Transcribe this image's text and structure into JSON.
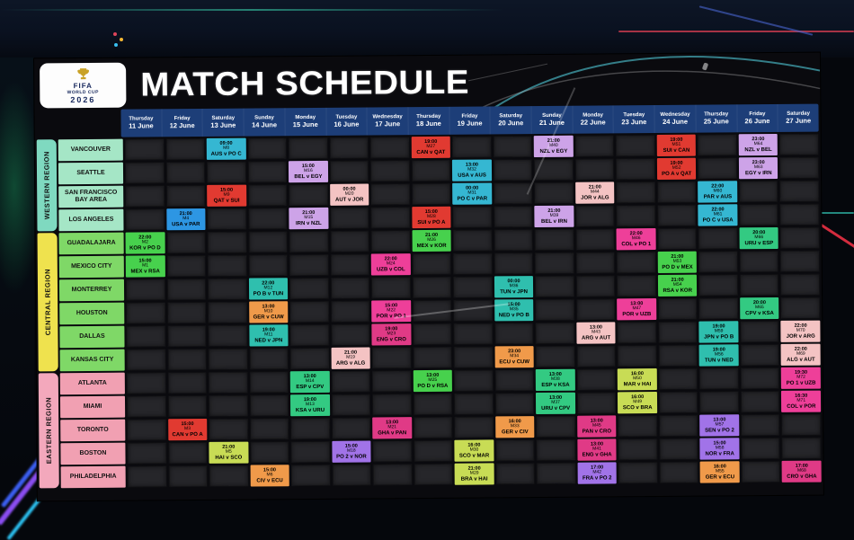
{
  "title": "MATCH SCHEDULE",
  "logo": {
    "line1": "FIFA",
    "line2": "WORLD CUP",
    "line3": "2026",
    "icon": "world-cup-trophy"
  },
  "ui_colors": {
    "column_header_bg": "#1d3e78",
    "cell_bg": "#26262a",
    "board_bg": "#0a0a0e"
  },
  "columns": [
    {
      "day": "Thursday",
      "date": "11 June"
    },
    {
      "day": "Friday",
      "date": "12 June"
    },
    {
      "day": "Saturday",
      "date": "13 June"
    },
    {
      "day": "Sunday",
      "date": "14 June"
    },
    {
      "day": "Monday",
      "date": "15 June"
    },
    {
      "day": "Tuesday",
      "date": "16 June"
    },
    {
      "day": "Wednesday",
      "date": "17 June"
    },
    {
      "day": "Thursday",
      "date": "18 June"
    },
    {
      "day": "Friday",
      "date": "19 June"
    },
    {
      "day": "Saturday",
      "date": "20 June"
    },
    {
      "day": "Sunday",
      "date": "21 June"
    },
    {
      "day": "Monday",
      "date": "22 June"
    },
    {
      "day": "Tuesday",
      "date": "23 June"
    },
    {
      "day": "Wednesday",
      "date": "24 June"
    },
    {
      "day": "Thursday",
      "date": "25 June"
    },
    {
      "day": "Friday",
      "date": "26 June"
    },
    {
      "day": "Saturday",
      "date": "27 June"
    }
  ],
  "regions": [
    {
      "name": "WESTERN REGION",
      "strip_color": "#7fd9c0",
      "city_color": "#a5e6c6",
      "cities": [
        "VANCOUVER",
        "SEATTLE",
        "SAN FRANCISCO BAY AREA",
        "LOS ANGELES"
      ]
    },
    {
      "name": "CENTRAL REGION",
      "strip_color": "#efe24e",
      "city_color": "#7fd867",
      "cities": [
        "GUADALAJARA",
        "MEXICO CITY",
        "MONTERREY",
        "HOUSTON",
        "DALLAS",
        "KANSAS CITY"
      ]
    },
    {
      "name": "EASTERN REGION",
      "strip_color": "#f3a8bc",
      "city_color": "#f1a0b2",
      "cities": [
        "ATLANTA",
        "MIAMI",
        "TORONTO",
        "BOSTON",
        "PHILADELPHIA"
      ]
    }
  ],
  "group_colors": {
    "usa": "#35b7d2",
    "usa_blue": "#2d96e3",
    "can": "#e13a31",
    "bel": "#cda3e8",
    "mex": "#47d14d",
    "esp": "#33ca82",
    "ger": "#f09a4a",
    "ned": "#2fbfae",
    "eng": "#e03a86",
    "por": "#ee3f99",
    "arg": "#f4c3c3",
    "bra": "#c8dc55",
    "fra": "#a173e8"
  },
  "matches": [
    {
      "row": 0,
      "col": 2,
      "time": "09:00",
      "no": "M8",
      "teams": "AUS v PO C",
      "group": "usa"
    },
    {
      "row": 0,
      "col": 7,
      "time": "19:00",
      "no": "M27",
      "teams": "CAN v QAT",
      "group": "can"
    },
    {
      "row": 0,
      "col": 10,
      "time": "21:00",
      "no": "M40",
      "teams": "NZL v EGY",
      "group": "bel"
    },
    {
      "row": 0,
      "col": 13,
      "time": "19:00",
      "no": "M51",
      "teams": "SUI v CAN",
      "group": "can"
    },
    {
      "row": 0,
      "col": 15,
      "time": "23:00",
      "no": "M64",
      "teams": "NZL v BEL",
      "group": "bel"
    },
    {
      "row": 1,
      "col": 4,
      "time": "15:00",
      "no": "M16",
      "teams": "BEL v EGY",
      "group": "bel"
    },
    {
      "row": 1,
      "col": 8,
      "time": "13:00",
      "no": "M32",
      "teams": "USA v AUS",
      "group": "usa"
    },
    {
      "row": 1,
      "col": 13,
      "time": "19:00",
      "no": "M52",
      "teams": "PO A v QAT",
      "group": "can"
    },
    {
      "row": 1,
      "col": 15,
      "time": "23:00",
      "no": "M63",
      "teams": "EGY v IRN",
      "group": "bel"
    },
    {
      "row": 2,
      "col": 2,
      "time": "15:00",
      "no": "M9",
      "teams": "QAT v SUI",
      "group": "can"
    },
    {
      "row": 2,
      "col": 5,
      "time": "00:00",
      "no": "M20",
      "teams": "AUT v JOR",
      "group": "arg"
    },
    {
      "row": 2,
      "col": 8,
      "time": "00:00",
      "no": "M31",
      "teams": "PO C v PAR",
      "group": "usa"
    },
    {
      "row": 2,
      "col": 11,
      "time": "21:00",
      "no": "M44",
      "teams": "JOR v ALG",
      "group": "arg"
    },
    {
      "row": 2,
      "col": 14,
      "time": "22:00",
      "no": "M60",
      "teams": "PAR v AUS",
      "group": "usa"
    },
    {
      "row": 3,
      "col": 1,
      "time": "21:00",
      "no": "M4",
      "teams": "USA v PAR",
      "group": "usa_blue"
    },
    {
      "row": 3,
      "col": 4,
      "time": "21:00",
      "no": "M15",
      "teams": "IRN v NZL",
      "group": "bel"
    },
    {
      "row": 3,
      "col": 7,
      "time": "15:00",
      "no": "M28",
      "teams": "SUI v PO A",
      "group": "can"
    },
    {
      "row": 3,
      "col": 10,
      "time": "21:00",
      "no": "M39",
      "teams": "BEL v IRN",
      "group": "bel"
    },
    {
      "row": 3,
      "col": 14,
      "time": "22:00",
      "no": "M61",
      "teams": "PO C v USA",
      "group": "usa"
    },
    {
      "row": 4,
      "col": 0,
      "time": "22:00",
      "no": "M2",
      "teams": "KOR v PO D",
      "group": "mex"
    },
    {
      "row": 4,
      "col": 7,
      "time": "21:00",
      "no": "M26",
      "teams": "MEX v KOR",
      "group": "mex"
    },
    {
      "row": 4,
      "col": 12,
      "time": "22:00",
      "no": "M46",
      "teams": "COL v PO 1",
      "group": "por"
    },
    {
      "row": 4,
      "col": 15,
      "time": "20:00",
      "no": "M66",
      "teams": "URU v ESP",
      "group": "esp"
    },
    {
      "row": 5,
      "col": 0,
      "time": "15:00",
      "no": "M1",
      "teams": "MEX v RSA",
      "group": "mex"
    },
    {
      "row": 5,
      "col": 6,
      "time": "22:00",
      "no": "M24",
      "teams": "UZB v COL",
      "group": "por"
    },
    {
      "row": 5,
      "col": 13,
      "time": "21:00",
      "no": "M53",
      "teams": "PO D v MEX",
      "group": "mex"
    },
    {
      "row": 6,
      "col": 3,
      "time": "22:00",
      "no": "M12",
      "teams": "PO B v TUN",
      "group": "ned"
    },
    {
      "row": 6,
      "col": 9,
      "time": "00:00",
      "no": "M36",
      "teams": "TUN v JPN",
      "group": "ned"
    },
    {
      "row": 6,
      "col": 13,
      "time": "21:00",
      "no": "M54",
      "teams": "RSA v KOR",
      "group": "mex"
    },
    {
      "row": 7,
      "col": 3,
      "time": "13:00",
      "no": "M10",
      "teams": "GER v CUW",
      "group": "ger"
    },
    {
      "row": 7,
      "col": 6,
      "time": "15:00",
      "no": "M22",
      "teams": "POR v PO 1",
      "group": "por"
    },
    {
      "row": 7,
      "col": 9,
      "time": "15:00",
      "no": "M35",
      "teams": "NED v PO B",
      "group": "ned"
    },
    {
      "row": 7,
      "col": 12,
      "time": "13:00",
      "no": "M47",
      "teams": "POR v UZB",
      "group": "por"
    },
    {
      "row": 7,
      "col": 15,
      "time": "20:00",
      "no": "M65",
      "teams": "CPV v KSA",
      "group": "esp"
    },
    {
      "row": 8,
      "col": 3,
      "time": "19:00",
      "no": "M11",
      "teams": "NED v JPN",
      "group": "ned"
    },
    {
      "row": 8,
      "col": 6,
      "time": "19:00",
      "no": "M23",
      "teams": "ENG v CRO",
      "group": "eng"
    },
    {
      "row": 8,
      "col": 11,
      "time": "13:00",
      "no": "M43",
      "teams": "ARG v AUT",
      "group": "arg"
    },
    {
      "row": 8,
      "col": 14,
      "time": "19:00",
      "no": "M59",
      "teams": "JPN v PO B",
      "group": "ned"
    },
    {
      "row": 8,
      "col": 16,
      "time": "22:00",
      "no": "M70",
      "teams": "JOR v ARG",
      "group": "arg"
    },
    {
      "row": 9,
      "col": 5,
      "time": "21:00",
      "no": "M19",
      "teams": "ARG v ALG",
      "group": "arg"
    },
    {
      "row": 9,
      "col": 9,
      "time": "23:00",
      "no": "M34",
      "teams": "ECU v CUW",
      "group": "ger"
    },
    {
      "row": 9,
      "col": 14,
      "time": "19:00",
      "no": "M56",
      "teams": "TUN v NED",
      "group": "ned"
    },
    {
      "row": 9,
      "col": 16,
      "time": "22:00",
      "no": "M69",
      "teams": "ALG v AUT",
      "group": "arg"
    },
    {
      "row": 10,
      "col": 4,
      "time": "13:00",
      "no": "M14",
      "teams": "ESP v CPV",
      "group": "esp"
    },
    {
      "row": 10,
      "col": 7,
      "time": "13:00",
      "no": "M25",
      "teams": "PO D v RSA",
      "group": "mex"
    },
    {
      "row": 10,
      "col": 10,
      "time": "13:00",
      "no": "M38",
      "teams": "ESP v KSA",
      "group": "esp"
    },
    {
      "row": 10,
      "col": 12,
      "time": "16:00",
      "no": "M50",
      "teams": "MAR v HAI",
      "group": "bra"
    },
    {
      "row": 10,
      "col": 16,
      "time": "19:30",
      "no": "M72",
      "teams": "PO 1 v UZB",
      "group": "por"
    },
    {
      "row": 11,
      "col": 4,
      "time": "19:00",
      "no": "M13",
      "teams": "KSA v URU",
      "group": "esp"
    },
    {
      "row": 11,
      "col": 10,
      "time": "13:00",
      "no": "M37",
      "teams": "URU v CPV",
      "group": "esp"
    },
    {
      "row": 11,
      "col": 12,
      "time": "16:00",
      "no": "M49",
      "teams": "SCO v BRA",
      "group": "bra"
    },
    {
      "row": 11,
      "col": 16,
      "time": "16:30",
      "no": "M71",
      "teams": "COL v POR",
      "group": "por"
    },
    {
      "row": 12,
      "col": 1,
      "time": "15:00",
      "no": "M3",
      "teams": "CAN v PO A",
      "group": "can"
    },
    {
      "row": 12,
      "col": 6,
      "time": "13:00",
      "no": "M21",
      "teams": "GHA v PAN",
      "group": "eng"
    },
    {
      "row": 12,
      "col": 9,
      "time": "16:00",
      "no": "M33",
      "teams": "GER v CIV",
      "group": "ger"
    },
    {
      "row": 12,
      "col": 11,
      "time": "13:00",
      "no": "M45",
      "teams": "PAN v CRO",
      "group": "eng"
    },
    {
      "row": 12,
      "col": 14,
      "time": "13:00",
      "no": "M57",
      "teams": "SEN v PO 2",
      "group": "fra"
    },
    {
      "row": 13,
      "col": 2,
      "time": "21:00",
      "no": "M5",
      "teams": "HAI v SCO",
      "group": "bra"
    },
    {
      "row": 13,
      "col": 5,
      "time": "15:00",
      "no": "M18",
      "teams": "PO 2 v NOR",
      "group": "fra"
    },
    {
      "row": 13,
      "col": 8,
      "time": "16:00",
      "no": "M30",
      "teams": "SCO v MAR",
      "group": "bra"
    },
    {
      "row": 13,
      "col": 11,
      "time": "13:00",
      "no": "M41",
      "teams": "ENG v GHA",
      "group": "eng"
    },
    {
      "row": 13,
      "col": 14,
      "time": "15:00",
      "no": "M58",
      "teams": "NOR v FRA",
      "group": "fra"
    },
    {
      "row": 14,
      "col": 3,
      "time": "15:00",
      "no": "M6",
      "teams": "CIV v ECU",
      "group": "ger"
    },
    {
      "row": 14,
      "col": 8,
      "time": "21:00",
      "no": "M29",
      "teams": "BRA v HAI",
      "group": "bra"
    },
    {
      "row": 14,
      "col": 11,
      "time": "17:00",
      "no": "M42",
      "teams": "FRA v PO 2",
      "group": "fra"
    },
    {
      "row": 14,
      "col": 14,
      "time": "16:00",
      "no": "M55",
      "teams": "GER v ECU",
      "group": "ger"
    },
    {
      "row": 14,
      "col": 16,
      "time": "17:00",
      "no": "M68",
      "teams": "CRO v GHA",
      "group": "eng"
    }
  ]
}
